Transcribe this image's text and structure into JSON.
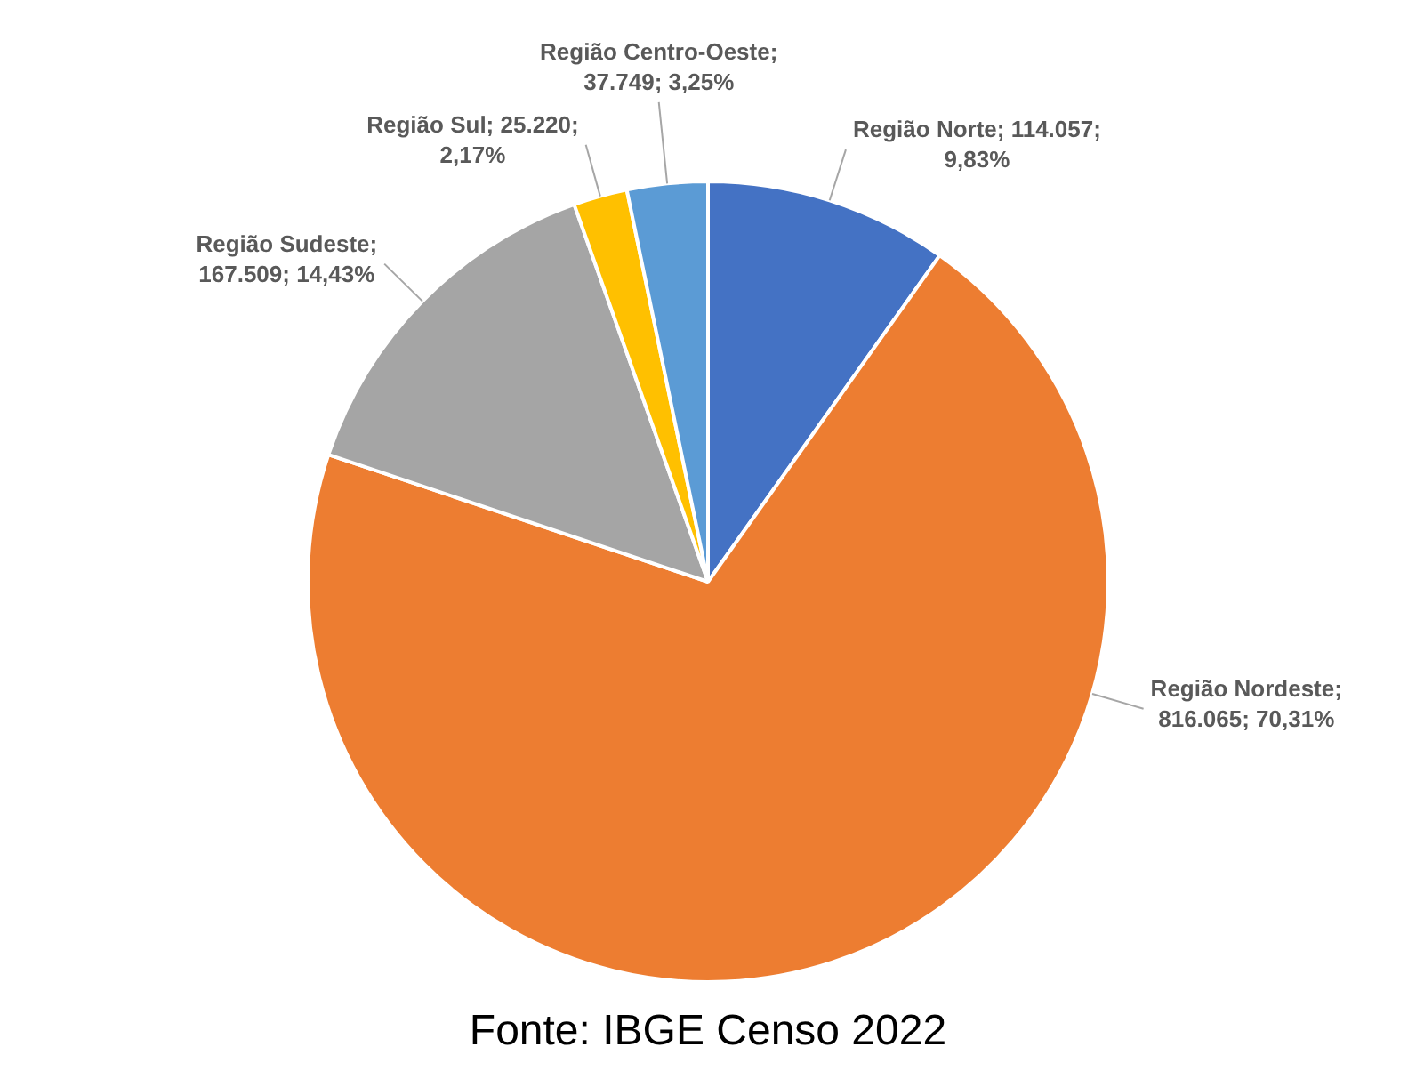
{
  "chart_data": {
    "type": "pie",
    "categories": [
      "Região Norte",
      "Região Nordeste",
      "Região Sudeste",
      "Região Sul",
      "Região Centro-Oeste"
    ],
    "values": [
      114057,
      816065,
      167509,
      25220,
      37749
    ],
    "value_labels": [
      "; 114.057; 9,83%",
      "; 816.065; 70,31%",
      "; 167.509; 14,43%",
      "; 25.220; 2,17%",
      "; 37.749; 3,25%"
    ],
    "colors": [
      "#4472c4",
      "#ed7d31",
      "#a5a5a5",
      "#ffc000",
      "#5b9bd5"
    ],
    "legend": false,
    "annotations": [
      "Fonte: IBGE Censo 2022"
    ]
  }
}
